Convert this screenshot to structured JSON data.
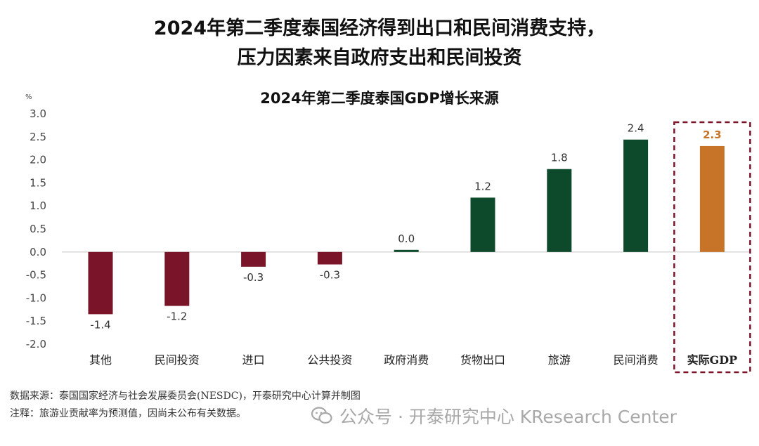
{
  "headline": {
    "line1": "2024年第二季度泰国经济得到出口和民间消费支持，",
    "line2": "压力因素来自政府支出和民间投资"
  },
  "footer": {
    "source": "数据来源：泰国国家经济与社会发展委员会(NESDC)，开泰研究中心计算并制图",
    "note": "注释：旅游业贡献率为预测值，因尚未公布有关数据。",
    "watermark": "公众号 · 开泰研究中心 KResearch Center"
  },
  "colors": {
    "negative": "#7a1428",
    "positive": "#0d4a2c",
    "highlight": "#c87428",
    "highlight_box": "#7a1428"
  },
  "chart_data": {
    "type": "bar",
    "title": "2024年第二季度泰国GDP增长来源",
    "unit_label": "%",
    "categories": [
      "其他",
      "民间投资",
      "进口",
      "公共投资",
      "政府消费",
      "货物出口",
      "旅游",
      "民间消费",
      "实际GDP"
    ],
    "values": [
      -1.35,
      -1.17,
      -0.32,
      -0.27,
      0.04,
      1.18,
      1.8,
      2.44,
      2.3
    ],
    "data_labels": [
      "-1.4",
      "-1.2",
      "-0.3",
      "-0.3",
      "0.0",
      "1.2",
      "1.8",
      "2.4",
      "2.3"
    ],
    "ylim": [
      -2.0,
      3.0
    ],
    "yticks": [
      "3.0",
      "2.5",
      "2.0",
      "1.5",
      "1.0",
      "0.5",
      "0.0",
      "-0.5",
      "-1.0",
      "-1.5",
      "-2.0"
    ],
    "highlighted_category": "实际GDP",
    "legend": "none",
    "grid": false
  }
}
